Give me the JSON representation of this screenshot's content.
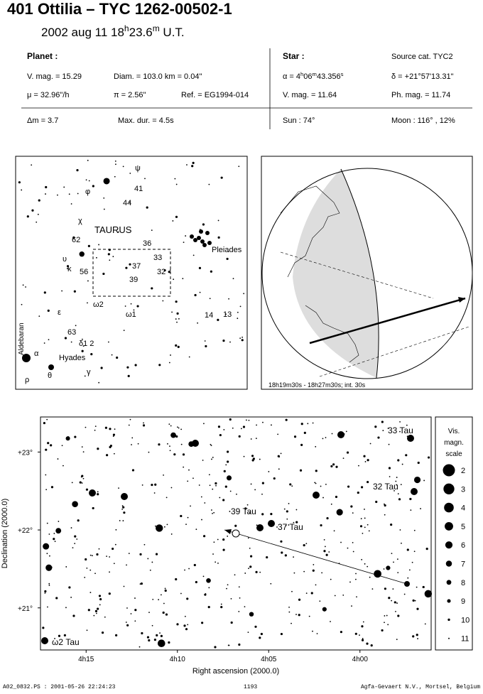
{
  "header": {
    "title": "401 Ottilia  –  TYC 1262-00502-1",
    "date": "2002 aug 11  ",
    "time": [
      "18",
      "h",
      "23.6",
      "m"
    ],
    "timescale": " U.T."
  },
  "info": {
    "planet": {
      "heading": "Planet :",
      "vmag": "V. mag. = 15.29",
      "diam": "Diam. = 103.0 km = 0.04\"",
      "mu": "μ = 32.96\"/h",
      "pi": "π = 2.56\"",
      "ref": "Ref. = EG1994-014"
    },
    "star": {
      "heading": "Star :",
      "source": "Source cat.  TYC2",
      "alpha": [
        "α = 4",
        "h",
        "06",
        "m",
        "43.356",
        "s"
      ],
      "delta": "δ = +21°57'13.31\"",
      "vmag": "V. mag. = 11.64",
      "phmag": "Ph. mag. = 11.74"
    },
    "dm": "Δm = 3.7",
    "maxdur": "Max. dur. = 4.5s",
    "sun": "Sun :  74°",
    "moon": "Moon : 116° , 12%"
  },
  "skymap": {
    "labels": [
      "ψ",
      "φ",
      "41",
      "44",
      "χ",
      "62",
      "TAURUS",
      "36",
      "33",
      "37",
      "32",
      "39",
      "υ",
      "κ",
      "56",
      "ω2",
      "ω1",
      "ε",
      "14",
      "13",
      "63",
      "δ1 2",
      "α",
      "Hyades",
      "ρ",
      "θ",
      "γ",
      "Pleiades"
    ],
    "aldebaran": "Aldebaran"
  },
  "globe": {
    "caption": "18h19m30s - 18h27m30s; int. 30s"
  },
  "chart_data": {
    "type": "finder",
    "xlabel": "Right ascension (2000.0)",
    "ylabel": "Declination (2000.0)",
    "xlim": [
      257.5,
      236.1
    ],
    "ylim": [
      20.46,
      23.45
    ],
    "xticks": [
      {
        "value": 255,
        "label": "4h15"
      },
      {
        "value": 250,
        "label": "4h10"
      },
      {
        "value": 245,
        "label": "4h05"
      },
      {
        "value": 240,
        "label": "4h00"
      }
    ],
    "yticks": [
      {
        "value": 23,
        "label": "+23°"
      },
      {
        "value": 22,
        "label": "+22°"
      },
      {
        "value": 21,
        "label": "+21°"
      }
    ],
    "star_labels": [
      "33 Tau",
      "32 Tau",
      "39 Tau",
      "37 Tau",
      "ω2 Tau"
    ]
  },
  "scale": {
    "title": [
      "Vis.",
      "magn.",
      "scale"
    ],
    "magnitudes": [
      "2",
      "3",
      "4",
      "5",
      "6",
      "7",
      "8",
      "9",
      "10",
      "11"
    ]
  },
  "footer": {
    "file": "A02_0832.PS : 2001-05-26 22:24:23",
    "number": "1193",
    "company": "Agfa-Gevaert N.V., Mortsel, Belgium"
  }
}
